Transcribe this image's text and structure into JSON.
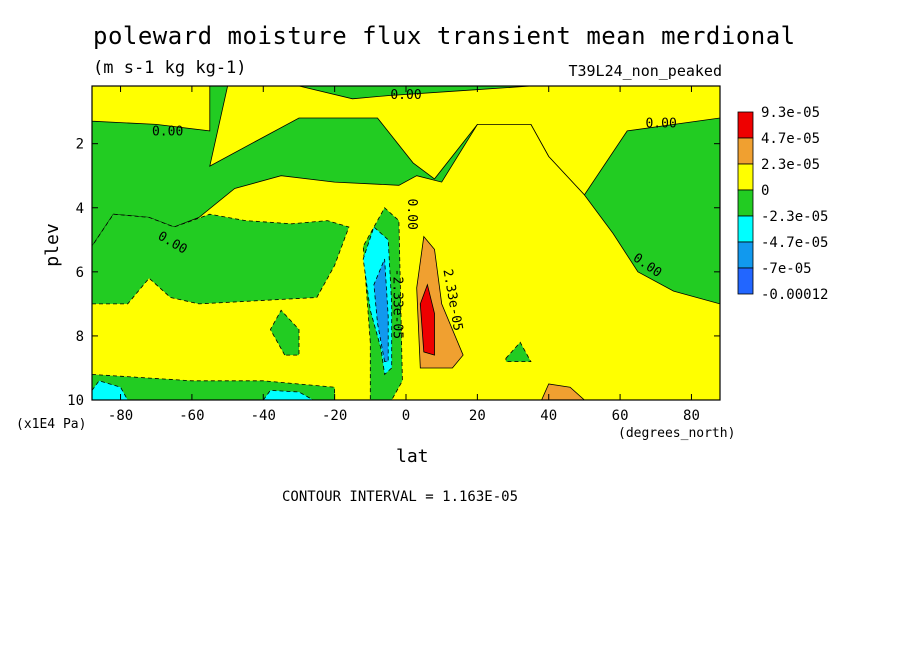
{
  "chart_data": {
    "type": "filled-contour",
    "title": "poleward moisture flux transient mean merdional",
    "units": "(m s-1 kg kg-1)",
    "dataset": "T39L24_non_peaked",
    "xlabel": "lat",
    "x_units": "(degrees_north)",
    "ylabel": "plev",
    "y_units": "(x1E4 Pa)",
    "x_ticks": [
      -80,
      -60,
      -40,
      -20,
      0,
      20,
      40,
      60,
      80
    ],
    "y_ticks": [
      2,
      4,
      6,
      8,
      10
    ],
    "xlim": [
      -88,
      88
    ],
    "ylim": [
      10,
      0.2
    ],
    "contour_interval": "CONTOUR INTERVAL = 1.163E-05",
    "legend": [
      {
        "label": "9.3e-05",
        "color": "#ee0000"
      },
      {
        "label": "4.7e-05",
        "color": "#f0a030"
      },
      {
        "label": "2.3e-05",
        "color": "#ffff00"
      },
      {
        "label": "0",
        "color": "#22cc22"
      },
      {
        "label": "-2.3e-05",
        "color": "#00ffff"
      },
      {
        "label": "-4.7e-05",
        "color": "#1199ee"
      },
      {
        "label": "-7e-05",
        "color": "#2266ff"
      },
      {
        "label": "-0.00012",
        "color": ""
      }
    ],
    "contour_labels": [
      "0.00",
      "0.00",
      "0.00",
      "0.00",
      "0.00",
      "0.00",
      "-2.33e-05",
      "2.33e-05"
    ],
    "regions": [
      {
        "level": "positive",
        "color": "#ffff00",
        "polygon": [
          [
            -88,
            0.2
          ],
          [
            -55,
            0.2
          ],
          [
            -55,
            1.6
          ],
          [
            -70,
            1.4
          ],
          [
            -88,
            1.3
          ]
        ]
      },
      {
        "level": "positive",
        "color": "#ffff00",
        "polygon": [
          [
            -55,
            2.7
          ],
          [
            -30,
            1.2
          ],
          [
            -8,
            1.2
          ],
          [
            2,
            2.6
          ],
          [
            8,
            3.1
          ],
          [
            20,
            1.4
          ],
          [
            35,
            1.4
          ],
          [
            40,
            2.4
          ],
          [
            50,
            3.6
          ],
          [
            62,
            1.6
          ],
          [
            88,
            1.2
          ],
          [
            88,
            0.2
          ],
          [
            35,
            0.2
          ],
          [
            15,
            0.35
          ],
          [
            -5,
            0.5
          ],
          [
            -15,
            0.6
          ],
          [
            -30,
            0.2
          ],
          [
            -50,
            0.2
          ]
        ]
      },
      {
        "level": "positive",
        "color": "#ffff00",
        "polygon": [
          [
            88,
            7.0
          ],
          [
            75,
            6.6
          ],
          [
            65,
            6.0
          ],
          [
            58,
            4.8
          ],
          [
            50,
            3.6
          ],
          [
            40,
            2.4
          ],
          [
            35,
            1.4
          ],
          [
            20,
            1.4
          ],
          [
            10,
            3.2
          ],
          [
            3,
            3.0
          ],
          [
            -2,
            3.3
          ],
          [
            -20,
            3.2
          ],
          [
            -35,
            3.0
          ],
          [
            -48,
            3.4
          ],
          [
            -58,
            4.3
          ],
          [
            -65,
            4.6
          ],
          [
            -72,
            4.3
          ],
          [
            -82,
            4.2
          ],
          [
            -88,
            5.2
          ],
          [
            -88,
            10
          ],
          [
            -20,
            10
          ],
          [
            -4,
            10
          ],
          [
            1,
            10
          ],
          [
            88,
            10
          ]
        ]
      },
      {
        "level": "negative",
        "color": "#22cc22",
        "polygon": [
          [
            -88,
            7.0
          ],
          [
            -78,
            7.0
          ],
          [
            -72,
            6.2
          ],
          [
            -66,
            6.8
          ],
          [
            -58,
            7.0
          ],
          [
            -25,
            6.8
          ],
          [
            -20,
            5.8
          ],
          [
            -16,
            4.6
          ],
          [
            -22,
            4.4
          ],
          [
            -32,
            4.5
          ],
          [
            -45,
            4.4
          ],
          [
            -55,
            4.2
          ],
          [
            -65,
            4.6
          ],
          [
            -72,
            4.3
          ],
          [
            -82,
            4.2
          ],
          [
            -88,
            5.2
          ]
        ]
      },
      {
        "level": "negative",
        "color": "#22cc22",
        "polygon": [
          [
            -10,
            8.2
          ],
          [
            -12,
            5.2
          ],
          [
            -6,
            4.0
          ],
          [
            -2,
            4.4
          ],
          [
            -1,
            9.4
          ],
          [
            -4,
            10
          ],
          [
            -10,
            10
          ]
        ]
      },
      {
        "level": "negative",
        "color": "#22cc22",
        "polygon": [
          [
            -88,
            9.2
          ],
          [
            -60,
            9.4
          ],
          [
            -40,
            9.4
          ],
          [
            -20,
            9.6
          ],
          [
            -20,
            10
          ],
          [
            -88,
            10
          ]
        ]
      },
      {
        "level": "negative",
        "color": "#22cc22",
        "polygon": [
          [
            -34,
            8.6
          ],
          [
            -38,
            7.8
          ],
          [
            -35,
            7.2
          ],
          [
            -30,
            7.8
          ],
          [
            -30,
            8.6
          ]
        ]
      },
      {
        "level": "negative",
        "color": "#22cc22",
        "polygon": [
          [
            28,
            8.7
          ],
          [
            32,
            8.2
          ],
          [
            35,
            8.8
          ],
          [
            28,
            8.8
          ]
        ]
      },
      {
        "level": "positive",
        "color": "#f0a030",
        "polygon": [
          [
            4,
            9.0
          ],
          [
            3,
            6.5
          ],
          [
            5,
            4.9
          ],
          [
            8,
            5.3
          ],
          [
            10,
            7.0
          ],
          [
            16,
            8.6
          ],
          [
            13,
            9.0
          ]
        ]
      },
      {
        "level": "positive",
        "color": "#ee0000",
        "polygon": [
          [
            5,
            8.5
          ],
          [
            4,
            7.0
          ],
          [
            6,
            6.4
          ],
          [
            8,
            7.3
          ],
          [
            8,
            8.6
          ]
        ]
      },
      {
        "level": "positive",
        "color": "#f0a030",
        "polygon": [
          [
            38,
            10
          ],
          [
            40,
            9.5
          ],
          [
            46,
            9.6
          ],
          [
            50,
            10
          ]
        ]
      },
      {
        "level": "negative",
        "color": "#00ffff",
        "polygon": [
          [
            -7,
            8.4
          ],
          [
            -10,
            7.2
          ],
          [
            -12,
            5.6
          ],
          [
            -9,
            4.6
          ],
          [
            -5,
            5.0
          ],
          [
            -4,
            7.0
          ],
          [
            -4,
            9.0
          ],
          [
            -6,
            9.2
          ]
        ]
      },
      {
        "level": "negative",
        "color": "#1199ee",
        "polygon": [
          [
            -6,
            8.8
          ],
          [
            -8,
            7.6
          ],
          [
            -9,
            6.4
          ],
          [
            -6,
            5.6
          ],
          [
            -5,
            7.4
          ],
          [
            -5,
            8.8
          ]
        ]
      },
      {
        "level": "negative",
        "color": "#00ffff",
        "polygon": [
          [
            -88,
            9.7
          ],
          [
            -86,
            9.4
          ],
          [
            -80,
            9.6
          ],
          [
            -78,
            10
          ],
          [
            -88,
            10
          ]
        ]
      },
      {
        "level": "negative",
        "color": "#00ffff",
        "polygon": [
          [
            -40,
            10
          ],
          [
            -38,
            9.7
          ],
          [
            -30,
            9.75
          ],
          [
            -26,
            10
          ]
        ]
      }
    ]
  }
}
